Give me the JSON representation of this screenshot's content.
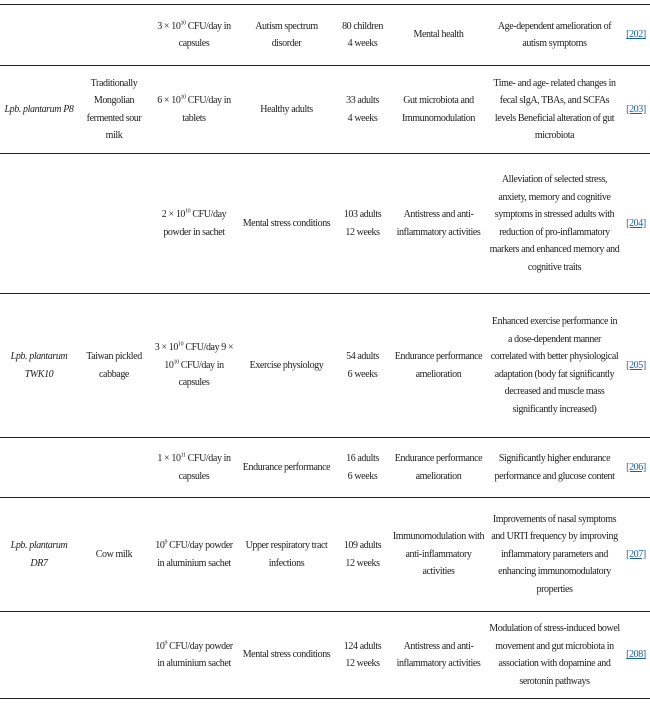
{
  "rows": [
    {
      "strain": "",
      "source": "",
      "dose": {
        "pre": "3 × 10",
        "exp": "10",
        "post": " CFU/day in capsules",
        "exp2": "",
        "post2": ""
      },
      "condition": "Autism spectrum disorder",
      "subjects": [
        "80 children",
        "4 weeks"
      ],
      "outcome": "Mental health",
      "effect": "Age-dependent amelioration of autism symptoms",
      "ref": "[202]"
    },
    {
      "strain": "Lpb. plantarum P8",
      "source": "Traditionally Mongolian fermented sour milk",
      "dose": {
        "pre": "6 × 10",
        "exp": "10",
        "post": " CFU/day in tablets",
        "exp2": "",
        "post2": ""
      },
      "condition": "Healthy adults",
      "subjects": [
        "33 adults",
        "4 weeks"
      ],
      "outcome": "Gut microbiota and Immunomodulation",
      "effect": "Time- and age- related changes in fecal sIgA, TBAs, and SCFAs levels Beneficial alteration of gut microbiota",
      "ref": "[203]"
    },
    {
      "strain": "",
      "source": "",
      "dose": {
        "pre": "2 × 10",
        "exp": "10",
        "post": " CFU/day powder in sachet",
        "exp2": "",
        "post2": ""
      },
      "condition": "Mental stress conditions",
      "subjects": [
        "103 adults",
        "12 weeks"
      ],
      "outcome": "Antistress and anti-inflammatory activities",
      "effect": "Alleviation of selected stress, anxiety, memory and cognitive symptoms in stressed adults with reduction of pro-inflammatory markers and enhanced memory and cognitive traits",
      "ref": "[204]"
    },
    {
      "strain": "Lpb. plantarum TWK10",
      "source": "Taiwan pickled cabbage",
      "dose": {
        "pre": "3 × 10",
        "exp": "10",
        "post": " CFU/day 9 × 10",
        "exp2": "10",
        "post2": " CFU/day in capsules"
      },
      "condition": "Exercise physiology",
      "subjects": [
        "54 adults",
        "6 weeks"
      ],
      "outcome": "Endurance performance amelioration",
      "effect": "Enhanced exercise performance in a dose-dependent manner correlated with better physiological adaptation (body fat significantly decreased and muscle mass significantly increased)",
      "ref": "[205]"
    },
    {
      "strain": "",
      "source": "",
      "dose": {
        "pre": "1 × 10",
        "exp": "11",
        "post": " CFU/day in capsules",
        "exp2": "",
        "post2": ""
      },
      "condition": "Endurance performance",
      "subjects": [
        "16 adults",
        "6 weeks"
      ],
      "outcome": "Endurance performance amelioration",
      "effect": "Significantly higher endurance performance and glucose content",
      "ref": "[206]"
    },
    {
      "strain": "Lpb. plantarum DR7",
      "source": "Cow milk",
      "dose": {
        "pre": "10",
        "exp": "9",
        "post": " CFU/day powder in aluminium sachet",
        "exp2": "",
        "post2": ""
      },
      "condition": "Upper respiratory tract infections",
      "subjects": [
        "109 adults",
        "12 weeks"
      ],
      "outcome": "Immunomodulation with anti-inflammatory activities",
      "effect": "Improvements of nasal symptoms and URTI frequency by improving inflammatory parameters and enhancing immunomodulatory properties",
      "ref": "[207]"
    },
    {
      "strain": "",
      "source": "",
      "dose": {
        "pre": "10",
        "exp": "9",
        "post": " CFU/day powder in aluminium sachet",
        "exp2": "",
        "post2": ""
      },
      "condition": "Mental stress conditions",
      "subjects": [
        "124 adults",
        "12 weeks"
      ],
      "outcome": "Antistress and anti-inflammatory activities",
      "effect": "Modulation of stress-induced bowel movement and gut microbiota in association with dopamine and serotonin pathways",
      "ref": "[208]"
    }
  ],
  "colors": {
    "link": "#1a5fa8",
    "text": "#222222"
  }
}
